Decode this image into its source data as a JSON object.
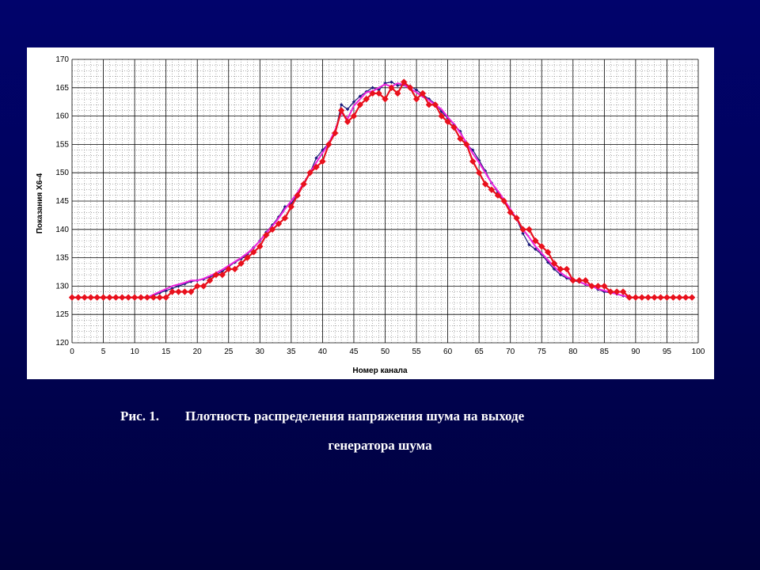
{
  "caption": {
    "figure_label": "Рис. 1.",
    "line1": "Плотность распределения напряжения шума на выходе",
    "line2": "генератора шума"
  },
  "chart_data": {
    "type": "line",
    "xlabel": "Номер канала",
    "ylabel": "Показания Х6-4",
    "xlim": [
      0,
      100
    ],
    "ylim": [
      120,
      170
    ],
    "x_ticks": [
      "0",
      "5",
      "10",
      "15",
      "20",
      "25",
      "30",
      "35",
      "40",
      "45",
      "50",
      "55",
      "60",
      "65",
      "70",
      "75",
      "80",
      "85",
      "90",
      "95",
      "100"
    ],
    "y_ticks": [
      "120",
      "125",
      "130",
      "135",
      "140",
      "145",
      "150",
      "155",
      "160",
      "165",
      "170"
    ],
    "grid": true,
    "legend": "none",
    "x": [
      0,
      1,
      2,
      3,
      4,
      5,
      6,
      7,
      8,
      9,
      10,
      11,
      12,
      13,
      14,
      15,
      16,
      17,
      18,
      19,
      20,
      21,
      22,
      23,
      24,
      25,
      26,
      27,
      28,
      29,
      30,
      31,
      32,
      33,
      34,
      35,
      36,
      37,
      38,
      39,
      40,
      41,
      42,
      43,
      44,
      45,
      46,
      47,
      48,
      49,
      50,
      51,
      52,
      53,
      54,
      55,
      56,
      57,
      58,
      59,
      60,
      61,
      62,
      63,
      64,
      65,
      66,
      67,
      68,
      69,
      70,
      71,
      72,
      73,
      74,
      75,
      76,
      77,
      78,
      79,
      80,
      81,
      82,
      83,
      84,
      85,
      86,
      87,
      88,
      89,
      90,
      91,
      92,
      93,
      94,
      95,
      96,
      97,
      98,
      99
    ],
    "series": [
      {
        "color": "#1a1a7a",
        "marker": "small-diamond",
        "values": [
          128,
          128,
          128,
          128,
          128,
          128,
          128,
          128,
          128,
          128,
          128,
          128,
          128,
          128.3,
          128.8,
          129.2,
          129.6,
          130,
          130.4,
          130.8,
          131,
          131.2,
          131.6,
          132,
          132.6,
          133.4,
          134.2,
          134.8,
          135.6,
          136.8,
          138,
          139.5,
          140.8,
          142.2,
          144,
          144.5,
          146.2,
          147.8,
          150,
          152.6,
          154,
          155.2,
          157,
          162,
          161.2,
          162.5,
          163.5,
          164.3,
          165,
          164.6,
          165.8,
          166,
          165.4,
          165.5,
          165.3,
          164.6,
          163.8,
          163,
          162.2,
          160.8,
          159.6,
          158.5,
          157.3,
          155,
          154,
          152.2,
          150.3,
          148.2,
          146.5,
          144.8,
          143.3,
          141.8,
          139.3,
          137.3,
          136.5,
          135.6,
          134.2,
          133,
          132,
          131.4,
          131,
          130.7,
          130.3,
          130,
          129.4,
          129,
          128.8,
          128.6,
          128.3,
          128,
          128,
          128,
          128,
          128,
          128,
          128,
          128,
          128,
          128,
          128
        ]
      },
      {
        "color": "#ee22dd",
        "marker": "none",
        "values": [
          128,
          128,
          128,
          128,
          128,
          128,
          128,
          128,
          128,
          128,
          128,
          128,
          128,
          128.5,
          129,
          129.5,
          130,
          130.3,
          130.6,
          131,
          131,
          131.3,
          131.8,
          132.3,
          132.9,
          133.6,
          134.3,
          135,
          135.8,
          136.8,
          138,
          139.4,
          140.6,
          142,
          143.6,
          145,
          146.5,
          148.2,
          150,
          151.8,
          153.5,
          155.2,
          157.5,
          160.6,
          159.5,
          161.8,
          163,
          164.2,
          164.4,
          165,
          165.6,
          165.2,
          165.8,
          165.5,
          164.8,
          164.2,
          163.4,
          162.8,
          162,
          161.2,
          159.8,
          158.6,
          157,
          155.3,
          153.4,
          151.8,
          150,
          148.2,
          146.8,
          145.2,
          143.6,
          141.8,
          140,
          138.6,
          137,
          135.8,
          134.6,
          133.4,
          132.4,
          131.6,
          131.2,
          130.8,
          130.3,
          130,
          129.5,
          129.2,
          128.9,
          128.6,
          128.3,
          128,
          128,
          128,
          128,
          128,
          128,
          128,
          128,
          128,
          128,
          128
        ]
      },
      {
        "color": "#e8101c",
        "marker": "large-diamond",
        "values": [
          128,
          128,
          128,
          128,
          128,
          128,
          128,
          128,
          128,
          128,
          128,
          128,
          128,
          128,
          128,
          128,
          129,
          129,
          129,
          129,
          130,
          130,
          131,
          132,
          132,
          133,
          133,
          134,
          135,
          136,
          137,
          139,
          140,
          141,
          142,
          144,
          146,
          148,
          150,
          151,
          152,
          155,
          157,
          161,
          159,
          160,
          162,
          163,
          164,
          164,
          163,
          165,
          164,
          166,
          165,
          163,
          164,
          162,
          162,
          160,
          159,
          158,
          156,
          155,
          152,
          150,
          148,
          147,
          146,
          145,
          143,
          142,
          140,
          140,
          138,
          137,
          136,
          134,
          133,
          133,
          131,
          131,
          131,
          130,
          130,
          130,
          129,
          129,
          129,
          128,
          128,
          128,
          128,
          128,
          128,
          128,
          128,
          128,
          128,
          128
        ]
      }
    ]
  }
}
